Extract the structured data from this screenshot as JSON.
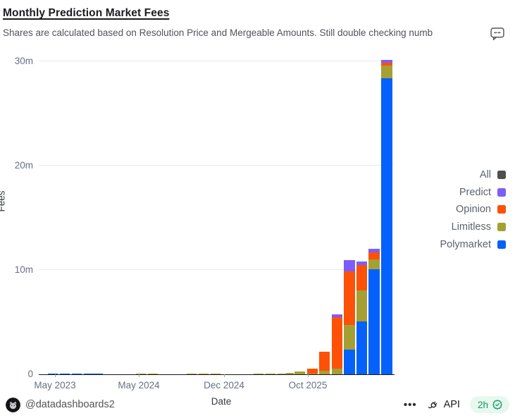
{
  "header": {
    "title": "Monthly Prediction Market Fees",
    "subtitle": "Shares are calculated based on Resolution Price and Mergeable Amounts. Still double checking numb",
    "comment_icon": "comment-bubble-icon"
  },
  "chart_data": {
    "type": "bar",
    "stacked": true,
    "title": "Monthly Prediction Market Fees",
    "xlabel": "Date",
    "ylabel": "Fees",
    "unit": "millions of fees",
    "ylim": [
      0,
      30
    ],
    "grid": "horizontal",
    "legend_position": "right",
    "y_ticks": [
      {
        "label": "0",
        "value": 0
      },
      {
        "label": "10m",
        "value": 10
      },
      {
        "label": "20m",
        "value": 20
      },
      {
        "label": "30m",
        "value": 30
      }
    ],
    "x_ticks": [
      {
        "label": "May 2023",
        "x": 23
      },
      {
        "label": "May 2024",
        "x": 142
      },
      {
        "label": "Dec 2024",
        "x": 263
      },
      {
        "label": "Oct 2025",
        "x": 382
      }
    ],
    "series": [
      {
        "key": "all",
        "name": "All",
        "color": "#4f4f4f"
      },
      {
        "key": "predict",
        "name": "Predict",
        "color": "#7c5cfa"
      },
      {
        "key": "opinion",
        "name": "Opinion",
        "color": "#fc5107"
      },
      {
        "key": "limitless",
        "name": "Limitless",
        "color": "#a5a033"
      },
      {
        "key": "polymarket",
        "name": "Polymarket",
        "color": "#0561fb"
      }
    ],
    "legend_order": [
      "all",
      "predict",
      "opinion",
      "limitless",
      "polymarket"
    ],
    "stack_order": [
      "polymarket",
      "limitless",
      "opinion",
      "predict"
    ],
    "bars": [
      {
        "x": 13,
        "w": 14,
        "polymarket": 0.07
      },
      {
        "x": 30,
        "w": 14,
        "polymarket": 0.1
      },
      {
        "x": 47,
        "w": 14,
        "polymarket": 0.1
      },
      {
        "x": 64,
        "w": 14,
        "polymarket": 0.08
      },
      {
        "x": 78,
        "w": 13,
        "polymarket": 0.07
      },
      {
        "x": 138,
        "w": 14,
        "limitless": 0.1
      },
      {
        "x": 155,
        "w": 14,
        "limitless": 0.08
      },
      {
        "x": 210,
        "w": 14,
        "limitless": 0.07
      },
      {
        "x": 227,
        "w": 14,
        "limitless": 0.07
      },
      {
        "x": 244,
        "w": 14,
        "limitless": 0.07
      },
      {
        "x": 305,
        "w": 14,
        "limitless": 0.08
      },
      {
        "x": 322,
        "w": 14,
        "limitless": 0.1
      },
      {
        "x": 339,
        "w": 14,
        "limitless": 0.1
      },
      {
        "x": 351,
        "w": 11,
        "limitless": 0.12
      },
      {
        "x": 363,
        "w": 15,
        "limitless": 0.27
      },
      {
        "x": 381,
        "w": 15,
        "limitless": 0.07,
        "opinion": 0.5
      },
      {
        "x": 398,
        "w": 15,
        "limitless": 0.34,
        "opinion": 1.82
      },
      {
        "x": 416,
        "w": 15,
        "limitless": 0.55,
        "opinion": 4.92,
        "predict": 0.27
      },
      {
        "x": 433,
        "w": 16,
        "polymarket": 2.36,
        "limitless": 2.36,
        "opinion": 5.12,
        "predict": 1.12
      },
      {
        "x": 451,
        "w": 15,
        "polymarket": 5.06,
        "limitless": 2.97,
        "opinion": 2.43,
        "predict": 0.34
      },
      {
        "x": 468,
        "w": 16,
        "polymarket": 10.05,
        "limitless": 0.94,
        "opinion": 0.67,
        "predict": 0.34
      },
      {
        "x": 486,
        "w": 16,
        "polymarket": 28.39,
        "limitless": 1.21,
        "opinion": 0.27,
        "predict": 0.27
      }
    ]
  },
  "footer": {
    "handle": "@datadashboards2",
    "more_label": "•••",
    "api_label": "API",
    "badge_text": "2h",
    "badge_colors": {
      "background": "#e7f8ef",
      "foreground": "#0b9b62"
    }
  }
}
